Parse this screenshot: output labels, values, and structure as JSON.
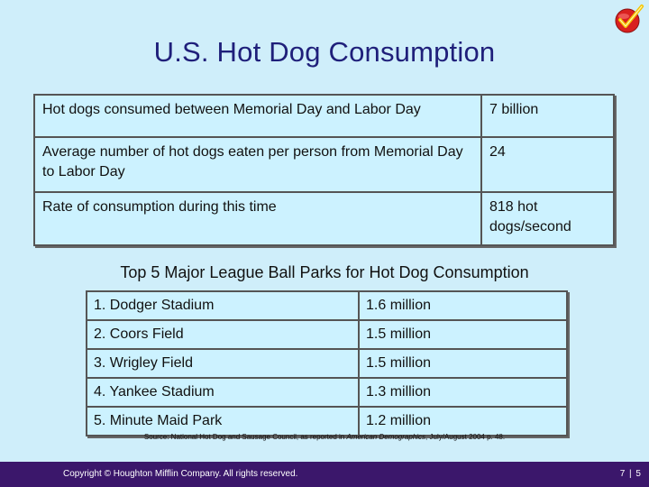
{
  "slide": {
    "title": "U.S. Hot Dog Consumption",
    "facts": [
      {
        "label": "Hot dogs consumed between Memorial Day and Labor Day",
        "value": "7 billion"
      },
      {
        "label": "Average number of hot dogs eaten per person from Memorial Day to Labor Day",
        "value": "24"
      },
      {
        "label": "Rate of consumption during this time",
        "value": "818 hot dogs/second"
      }
    ],
    "ballparks_title": "Top 5 Major League Ball Parks for Hot Dog Consumption",
    "ballparks": [
      {
        "name": "1. Dodger Stadium",
        "value": "1.6 million"
      },
      {
        "name": "2. Coors Field",
        "value": "1.5 million"
      },
      {
        "name": "3. Wrigley Field",
        "value": "1.5 million"
      },
      {
        "name": "4. Yankee Stadium",
        "value": "1.3 million"
      },
      {
        "name": "5. Minute Maid Park",
        "value": "1.2 million"
      }
    ],
    "source_prefix": "Source: National Hot Dog and Sausage Council, as reported in ",
    "source_pub": "American Demographics",
    "source_suffix": ", July/August 2004 p. 48.",
    "copyright": "Copyright © Houghton Mifflin Company. All rights reserved.",
    "page_number": "7 | 5"
  },
  "colors": {
    "background": "#cfeefa",
    "title": "#1f1f7a",
    "cell": "#ccf2ff",
    "footer": "#3b176b",
    "logo_red": "#d9201f",
    "logo_check": "#f5c400"
  },
  "icons": {
    "logo": "checkmark-badge-icon"
  }
}
